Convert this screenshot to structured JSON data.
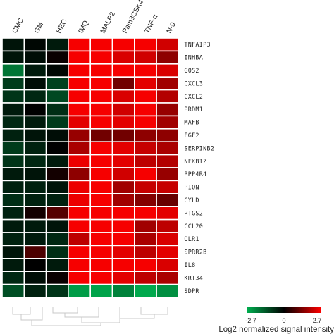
{
  "chart_data": {
    "type": "heatmap",
    "columns": [
      "CMC",
      "GM",
      "HEC",
      "IMQ",
      "MALP2",
      "Pam3CSK4",
      "TNF-α",
      "N-9"
    ],
    "rows": [
      "TNFAIP3",
      "INHBA",
      "G0S2",
      "CXCL3",
      "CXCL2",
      "PRDM1",
      "MAFB",
      "FGF2",
      "SERPINB2",
      "NFKBIZ",
      "PPP4R4",
      "PION",
      "CYLD",
      "PTGS2",
      "CCL20",
      "OLR1",
      "SPRR2B",
      "IL8",
      "KRT34",
      "SDPR"
    ],
    "values": [
      [
        -0.3,
        -0.1,
        -0.4,
        2.6,
        2.6,
        2.6,
        2.6,
        2.2
      ],
      [
        -0.3,
        -0.2,
        0.1,
        2.6,
        2.6,
        2.3,
        2.2,
        1.5
      ],
      [
        -1.8,
        -0.4,
        -0.1,
        2.6,
        2.6,
        2.6,
        2.6,
        2.3
      ],
      [
        -0.9,
        -0.2,
        -1.0,
        2.6,
        2.6,
        1.2,
        2.4,
        1.7
      ],
      [
        -0.8,
        -0.6,
        -1.1,
        2.6,
        2.6,
        2.3,
        2.6,
        1.9
      ],
      [
        -0.4,
        0.0,
        -0.7,
        2.6,
        2.6,
        2.2,
        2.6,
        1.6
      ],
      [
        -0.6,
        -0.4,
        -0.9,
        2.4,
        2.6,
        2.4,
        2.6,
        1.7
      ],
      [
        -0.5,
        -0.3,
        -0.2,
        1.6,
        1.2,
        1.2,
        1.5,
        1.5
      ],
      [
        -0.9,
        -0.5,
        0.0,
        1.8,
        2.6,
        2.4,
        2.1,
        1.8
      ],
      [
        -0.8,
        -0.6,
        -0.4,
        2.5,
        2.6,
        2.4,
        2.0,
        1.9
      ],
      [
        -0.4,
        -0.3,
        0.2,
        1.5,
        2.6,
        2.2,
        2.6,
        1.6
      ],
      [
        -0.5,
        -0.5,
        -0.3,
        2.5,
        2.6,
        1.7,
        2.1,
        2.1
      ],
      [
        -0.7,
        -0.5,
        -0.5,
        2.5,
        2.6,
        1.7,
        1.4,
        1.1
      ],
      [
        -0.5,
        0.2,
        0.9,
        2.6,
        2.6,
        2.6,
        2.6,
        2.4
      ],
      [
        -0.4,
        -0.4,
        -0.3,
        2.6,
        2.6,
        2.6,
        1.7,
        2.0
      ],
      [
        -0.5,
        -0.4,
        -0.6,
        2.0,
        2.6,
        2.6,
        1.8,
        2.3
      ],
      [
        -0.3,
        0.8,
        -0.7,
        2.6,
        2.6,
        2.4,
        2.0,
        2.4
      ],
      [
        -0.4,
        0.0,
        -0.4,
        2.6,
        2.6,
        2.6,
        2.6,
        2.3
      ],
      [
        -0.6,
        -0.2,
        0.1,
        2.6,
        2.6,
        2.4,
        2.0,
        1.8
      ],
      [
        -1.2,
        -0.5,
        -0.8,
        -2.4,
        -2.5,
        -2.0,
        -2.6,
        -2.2
      ]
    ],
    "color_scale": {
      "min": -2.7,
      "mid": 0,
      "max": 2.7,
      "low_color": "#00b050",
      "mid_color": "#000000",
      "high_color": "#ff0000"
    },
    "legend": {
      "title": "Log2 normalized signal intensity",
      "ticks": [
        "-2.7",
        "0",
        "2.7"
      ]
    }
  }
}
